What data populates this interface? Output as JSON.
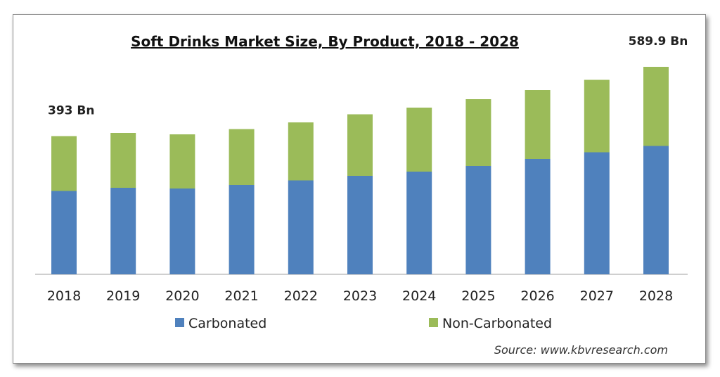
{
  "chart_data": {
    "type": "bar",
    "stacked": true,
    "title": "Soft Drinks Market Size, By Product, 2018 - 2028",
    "categories": [
      "2018",
      "2019",
      "2020",
      "2021",
      "2022",
      "2023",
      "2024",
      "2025",
      "2026",
      "2027",
      "2028"
    ],
    "series": [
      {
        "name": "Carbonated",
        "color": "#4f81bd",
        "values": [
          237,
          246,
          244,
          254,
          267,
          280,
          292,
          308,
          328,
          347,
          365
        ]
      },
      {
        "name": "Non-Carbonated",
        "color": "#9bbb59",
        "values": [
          156,
          156,
          154,
          159,
          165,
          175,
          182,
          190,
          196,
          206,
          225
        ]
      }
    ],
    "totals_labels": [
      {
        "category": "2018",
        "text": "393 Bn"
      },
      {
        "category": "2028",
        "text": "589.9 Bn"
      }
    ],
    "ylim": [
      0,
      620
    ],
    "grid": false,
    "legend_position": "bottom"
  },
  "source_text": "Source:  www.kbvresearch.com"
}
